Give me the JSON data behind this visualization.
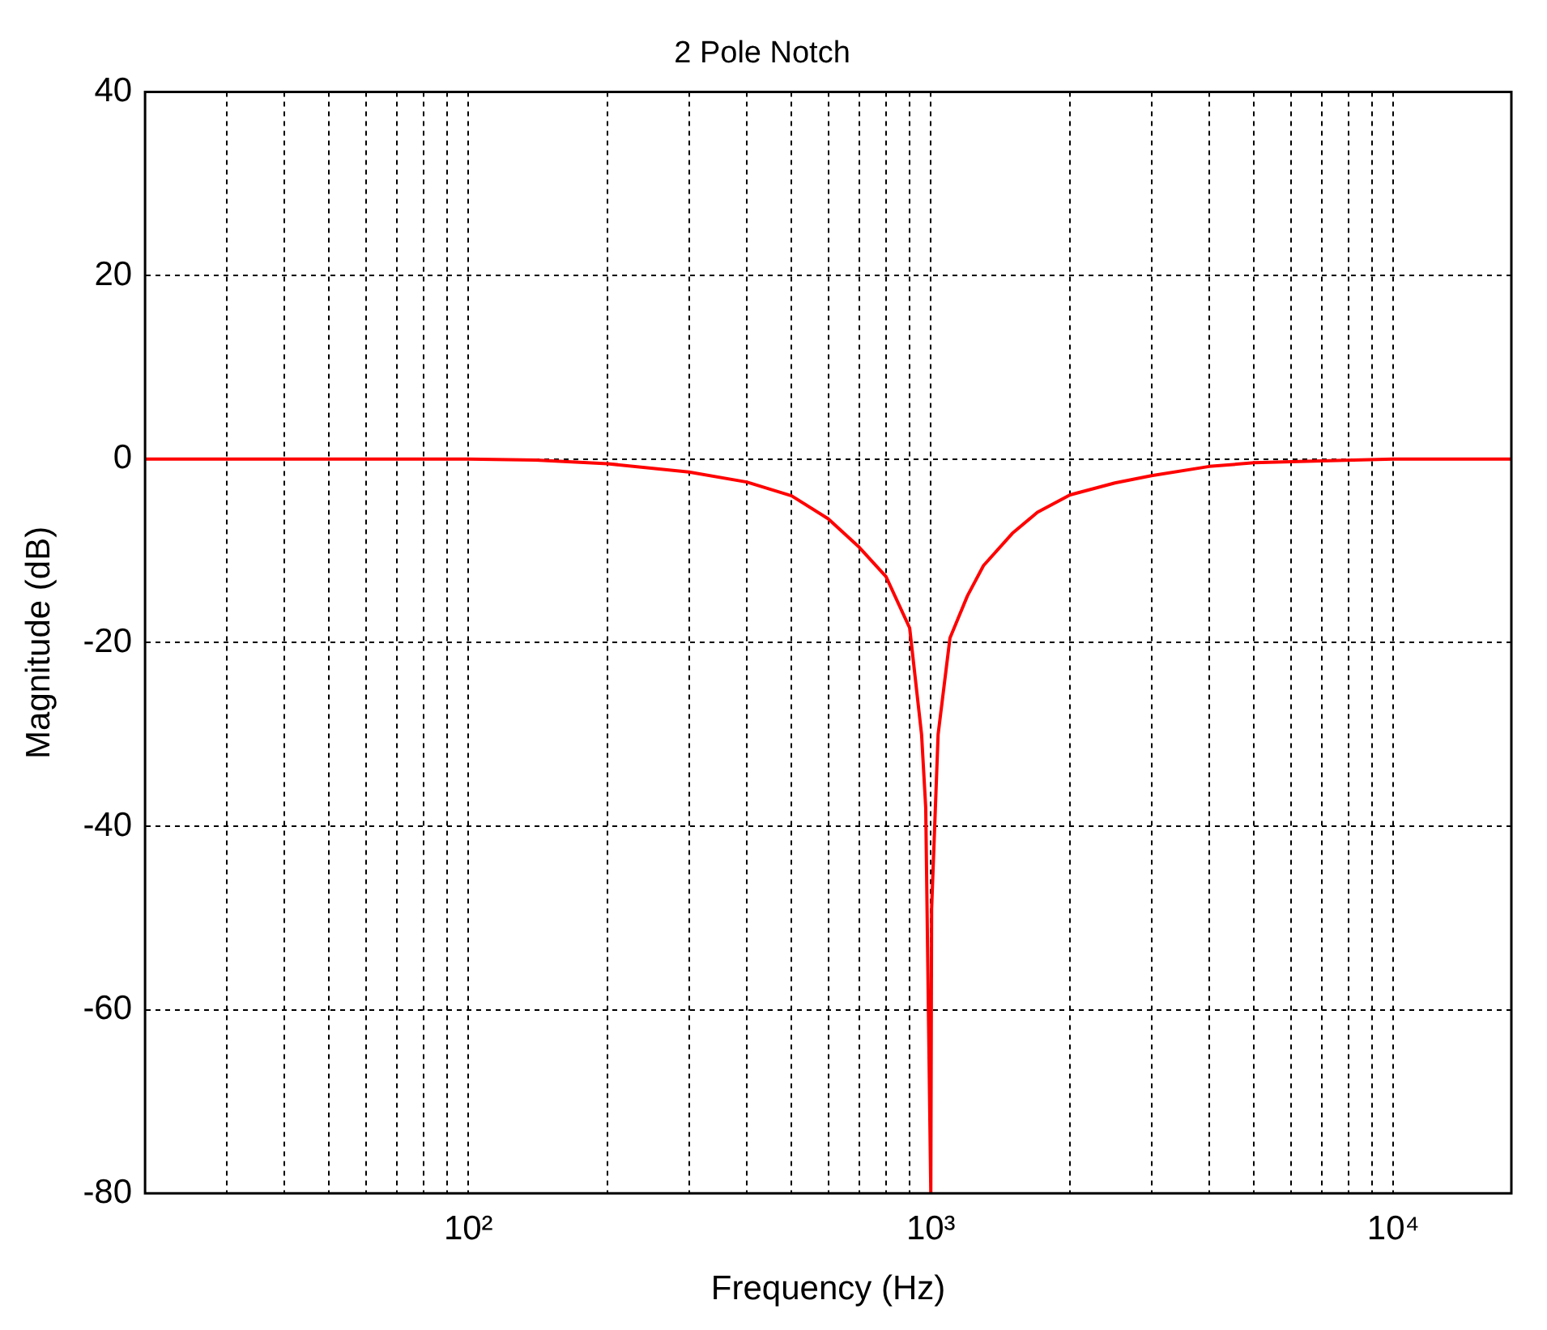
{
  "chart_data": {
    "type": "line",
    "title": "2 Pole Notch",
    "xlabel": "Frequency (Hz)",
    "ylabel": "Magnitude (dB)",
    "x": [
      20,
      100,
      140,
      200,
      300,
      400,
      500,
      600,
      700,
      800,
      900,
      955,
      975,
      1000,
      1004,
      1037,
      1100,
      1200,
      1300,
      1500,
      1700,
      2000,
      2500,
      3000,
      4000,
      5000,
      7000,
      10000,
      18000
    ],
    "series": [
      {
        "color": "#ff0000",
        "values": [
          0,
          0,
          -0.1,
          -0.5,
          -1.4,
          -2.5,
          -4.0,
          -6.5,
          -9.6,
          -12.8,
          -18.4,
          -30,
          -38,
          -80,
          -49,
          -30,
          -19.5,
          -14.9,
          -11.6,
          -8.1,
          -5.8,
          -3.9,
          -2.6,
          -1.8,
          -0.8,
          -0.4,
          -0.2,
          0,
          0
        ]
      }
    ],
    "log": "x",
    "xlim": [
      20,
      18000
    ],
    "ylim": [
      -80,
      40
    ],
    "xticks": [
      {
        "value": 30,
        "label": null
      },
      {
        "value": 40,
        "label": null
      },
      {
        "value": 50,
        "label": null
      },
      {
        "value": 60,
        "label": null
      },
      {
        "value": 70,
        "label": null
      },
      {
        "value": 80,
        "label": null
      },
      {
        "value": 90,
        "label": null
      },
      {
        "value": 100,
        "label": "10²"
      },
      {
        "value": 200,
        "label": null
      },
      {
        "value": 300,
        "label": null
      },
      {
        "value": 400,
        "label": null
      },
      {
        "value": 500,
        "label": null
      },
      {
        "value": 600,
        "label": null
      },
      {
        "value": 700,
        "label": null
      },
      {
        "value": 800,
        "label": null
      },
      {
        "value": 900,
        "label": null
      },
      {
        "value": 1000,
        "label": "10³"
      },
      {
        "value": 2000,
        "label": null
      },
      {
        "value": 3000,
        "label": null
      },
      {
        "value": 4000,
        "label": null
      },
      {
        "value": 5000,
        "label": null
      },
      {
        "value": 6000,
        "label": null
      },
      {
        "value": 7000,
        "label": null
      },
      {
        "value": 8000,
        "label": null
      },
      {
        "value": 9000,
        "label": null
      },
      {
        "value": 10000,
        "label": "10⁴"
      }
    ],
    "yticks": [
      -80,
      -60,
      -40,
      -20,
      0,
      20,
      40
    ],
    "grid": true,
    "legend": false,
    "marker": "none",
    "line_style": "solid"
  }
}
